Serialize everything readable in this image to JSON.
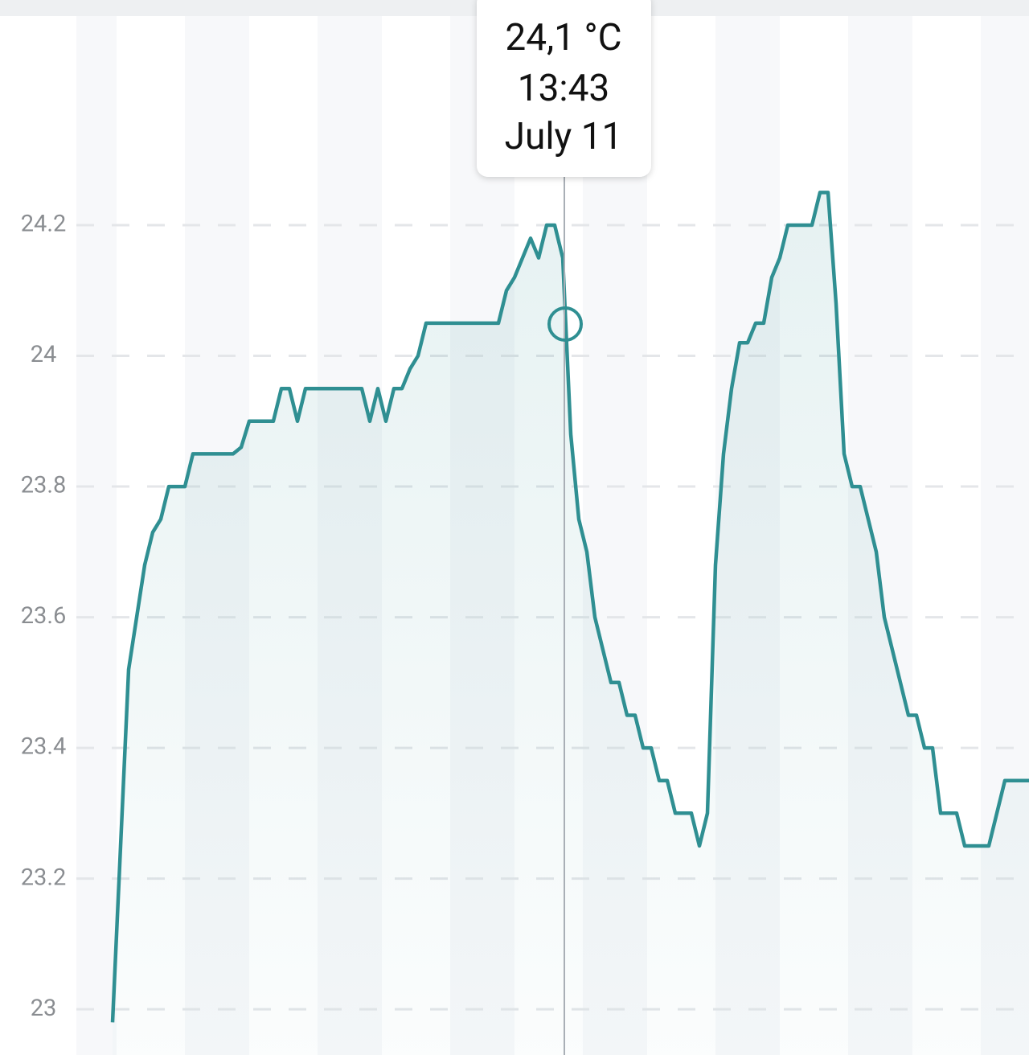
{
  "chart_data": {
    "type": "line",
    "series": [
      {
        "color": "#2f8f92",
        "values": [
          22.98,
          23.25,
          23.52,
          23.6,
          23.68,
          23.73,
          23.75,
          23.8,
          23.8,
          23.8,
          23.85,
          23.85,
          23.85,
          23.85,
          23.85,
          23.85,
          23.86,
          23.9,
          23.9,
          23.9,
          23.9,
          23.95,
          23.95,
          23.9,
          23.95,
          23.95,
          23.95,
          23.95,
          23.95,
          23.95,
          23.95,
          23.95,
          23.9,
          23.95,
          23.9,
          23.95,
          23.95,
          23.98,
          24,
          24.05,
          24.05,
          24.05,
          24.05,
          24.05,
          24.05,
          24.05,
          24.05,
          24.05,
          24.05,
          24.1,
          24.12,
          24.15,
          24.18,
          24.15,
          24.2,
          24.2,
          24.15,
          23.88,
          23.75,
          23.7,
          23.6,
          23.55,
          23.5,
          23.5,
          23.45,
          23.45,
          23.4,
          23.4,
          23.35,
          23.35,
          23.3,
          23.3,
          23.3,
          23.25,
          23.3,
          23.68,
          23.85,
          23.95,
          24.02,
          24.02,
          24.05,
          24.05,
          24.12,
          24.15,
          24.2,
          24.2,
          24.2,
          24.2,
          24.25,
          24.25,
          24.08,
          23.85,
          23.8,
          23.8,
          23.75,
          23.7,
          23.6,
          23.55,
          23.5,
          23.45,
          23.45,
          23.4,
          23.4,
          23.3,
          23.3,
          23.3,
          23.25,
          23.25,
          23.25,
          23.25,
          23.3,
          23.35,
          23.35,
          23.35,
          23.35
        ]
      }
    ],
    "ylim": [
      22.93,
      24.52
    ],
    "yticks": [
      23,
      23.2,
      23.4,
      23.6,
      23.8,
      24,
      24.2
    ],
    "grid": true,
    "tooltip": {
      "value": "24,1 °C",
      "time": "13:43",
      "date": "July 11"
    }
  }
}
